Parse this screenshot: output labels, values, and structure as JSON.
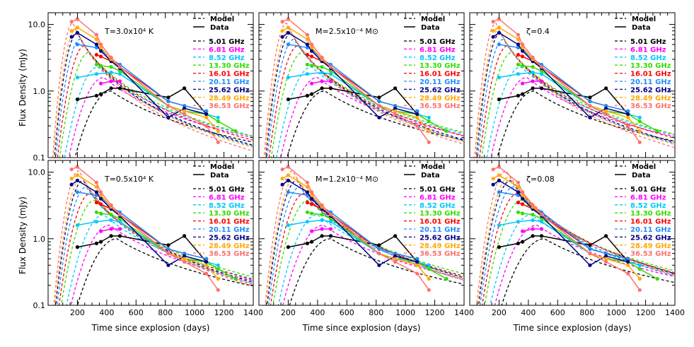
{
  "figure": {
    "ylabel": "Flux Density (mJy)",
    "xlabel": "Time since explosion (days)"
  },
  "legend": {
    "model_label": "Model",
    "data_label": "Data",
    "frequencies": [
      {
        "label": "5.01 GHz",
        "color": "#000000"
      },
      {
        "label": "6.81 GHz",
        "color": "#ff00ff"
      },
      {
        "label": "8.52 GHz",
        "color": "#00c8ff"
      },
      {
        "label": "13.30 GHz",
        "color": "#33dd00"
      },
      {
        "label": "16.01 GHz",
        "color": "#ff0000"
      },
      {
        "label": "20.11 GHz",
        "color": "#1e8cff"
      },
      {
        "label": "25.62 GHz",
        "color": "#000088"
      },
      {
        "label": "28.49 GHz",
        "color": "#ffaa00"
      },
      {
        "label": "36.53 GHz",
        "color": "#ff7070"
      }
    ]
  },
  "chart_data": {
    "type": "line",
    "xlim": [
      0,
      1400
    ],
    "ylim": [
      0.1,
      15
    ],
    "yscale": "log",
    "xticks": [
      200,
      400,
      600,
      800,
      1000,
      1200,
      1400
    ],
    "xtick_labels": [
      "200",
      "400",
      "600",
      "800",
      "1000",
      "1200",
      "1400"
    ],
    "yticks": [
      0.1,
      1.0,
      10.0
    ],
    "ytick_labels": [
      "0.1",
      "1.0",
      "10.0"
    ],
    "panels": [
      {
        "annotation": "T=3.0x10⁴ K",
        "model_shift": 0
      },
      {
        "annotation": "M=2.5x10⁻⁴ M⊙",
        "model_shift": 20
      },
      {
        "annotation": "ζ=0.4",
        "model_shift": 10
      },
      {
        "annotation": "T=0.5x10⁴ K",
        "model_shift": 40
      },
      {
        "annotation": "M=1.2x10⁻⁴ M⊙",
        "model_shift": 60
      },
      {
        "annotation": "ζ=0.08",
        "model_shift": 80
      }
    ],
    "models": [
      {
        "name": "5.01 GHz",
        "t_peak": 430,
        "peak": 1.0,
        "decay": 1.5
      },
      {
        "name": "6.81 GHz",
        "t_peak": 380,
        "peak": 1.6,
        "decay": 1.6
      },
      {
        "name": "8.52 GHz",
        "t_peak": 340,
        "peak": 2.3,
        "decay": 1.7
      },
      {
        "name": "13.30 GHz",
        "t_peak": 280,
        "peak": 3.8,
        "decay": 1.8
      },
      {
        "name": "16.01 GHz",
        "t_peak": 250,
        "peak": 4.8,
        "decay": 1.9
      },
      {
        "name": "20.11 GHz",
        "t_peak": 220,
        "peak": 6.0,
        "decay": 2.0
      },
      {
        "name": "25.62 GHz",
        "t_peak": 200,
        "peak": 7.5,
        "decay": 2.0
      },
      {
        "name": "28.49 GHz",
        "t_peak": 190,
        "peak": 8.5,
        "decay": 2.05
      },
      {
        "name": "36.53 GHz",
        "t_peak": 170,
        "peak": 10.5,
        "decay": 2.1
      }
    ],
    "series": [
      {
        "name": "5.01 GHz",
        "x": [
          200,
          330,
          360,
          430,
          490,
          820,
          930,
          1080
        ],
        "y": [
          0.75,
          0.85,
          0.9,
          1.1,
          1.1,
          0.8,
          1.1,
          0.45
        ]
      },
      {
        "name": "6.81 GHz",
        "x": [
          360,
          430,
          490
        ],
        "y": [
          1.3,
          1.4,
          1.4
        ]
      },
      {
        "name": "8.52 GHz",
        "x": [
          200,
          330,
          430,
          490,
          820,
          930,
          1080,
          1160
        ],
        "y": [
          1.6,
          1.8,
          1.9,
          1.8,
          0.6,
          0.5,
          0.45,
          0.4
        ]
      },
      {
        "name": "13.30 GHz",
        "x": [
          330,
          360,
          430,
          490,
          820,
          930,
          1080,
          1160,
          1280
        ],
        "y": [
          2.5,
          2.4,
          2.3,
          2.0,
          0.6,
          0.5,
          0.45,
          0.35,
          0.25
        ]
      },
      {
        "name": "16.01 GHz",
        "x": [
          330,
          360,
          430,
          490,
          820,
          930,
          1080
        ],
        "y": [
          3.5,
          3.3,
          2.8,
          2.3,
          0.7,
          0.6,
          0.5
        ]
      },
      {
        "name": "20.11 GHz",
        "x": [
          200,
          330,
          360,
          430,
          490,
          820,
          930,
          1080
        ],
        "y": [
          5.0,
          4.5,
          4.2,
          3.0,
          2.5,
          0.7,
          0.6,
          0.5
        ]
      },
      {
        "name": "25.62 GHz",
        "x": [
          160,
          200,
          330,
          360,
          430,
          490,
          820,
          930,
          1080
        ],
        "y": [
          6.5,
          7.5,
          5.0,
          4.0,
          2.8,
          2.2,
          0.4,
          0.55,
          0.45
        ]
      },
      {
        "name": "28.49 GHz",
        "x": [
          160,
          200,
          330,
          360,
          430,
          490,
          820,
          930,
          1080,
          1160
        ],
        "y": [
          8.0,
          9.0,
          6.0,
          4.5,
          3.0,
          2.3,
          0.6,
          0.5,
          0.4,
          0.25
        ]
      },
      {
        "name": "36.53 GHz",
        "x": [
          160,
          200,
          330,
          360,
          430,
          490,
          820,
          930,
          1080,
          1160
        ],
        "y": [
          11.0,
          12.0,
          7.0,
          5.0,
          3.2,
          2.3,
          0.6,
          0.45,
          0.3,
          0.17
        ]
      }
    ]
  }
}
